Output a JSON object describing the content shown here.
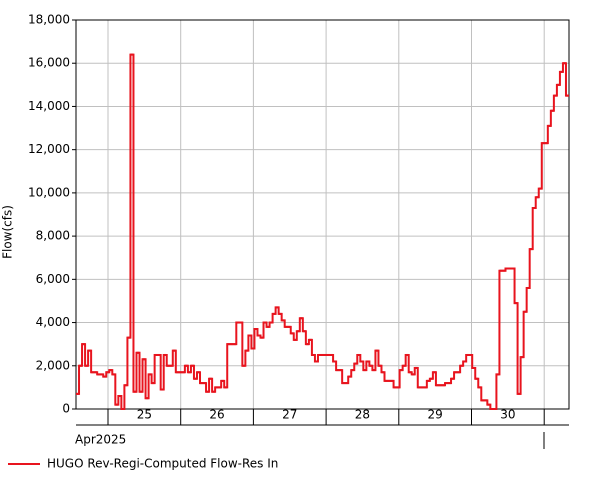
{
  "chart_data": {
    "type": "line",
    "step": true,
    "y_label": "Flow(cfs)",
    "x_labels": [
      "25",
      "26",
      "27",
      "28",
      "29",
      "30"
    ],
    "x_period": "Apr2025",
    "ylim": [
      0,
      18000
    ],
    "yticks": [
      0,
      {
        "value": 2000,
        "label": "2,000"
      },
      {
        "value": 4000,
        "label": "4,000"
      },
      {
        "value": 6000,
        "label": "6,000"
      },
      {
        "value": 8000,
        "label": "8,000"
      },
      {
        "value": 10000,
        "label": "10,000"
      },
      {
        "value": 12000,
        "label": "12,000"
      },
      {
        "value": 14000,
        "label": "14,000"
      },
      {
        "value": 16000,
        "label": "16,000"
      },
      {
        "value": 18000,
        "label": "18,000"
      }
    ],
    "grid": true,
    "series": [
      {
        "name": "HUGO Rev-Regi-Computed Flow-Res In",
        "color": "#e8141e",
        "values": [
          700,
          2000,
          3000,
          2000,
          2700,
          1700,
          1700,
          1600,
          1600,
          1500,
          1700,
          1800,
          1600,
          200,
          600,
          0,
          1100,
          3300,
          16400,
          800,
          2600,
          800,
          2300,
          500,
          1600,
          1200,
          2500,
          2500,
          900,
          2500,
          2000,
          2000,
          2700,
          1700,
          1700,
          1700,
          2000,
          1700,
          2000,
          1400,
          1700,
          1200,
          1200,
          800,
          1400,
          800,
          1000,
          1000,
          1300,
          1000,
          3000,
          3000,
          3000,
          4000,
          4000,
          2000,
          2700,
          3400,
          2800,
          3700,
          3400,
          3300,
          4000,
          3800,
          4000,
          4400,
          4700,
          4400,
          4100,
          3800,
          3800,
          3500,
          3200,
          3600,
          4200,
          3600,
          3000,
          3200,
          2500,
          2200,
          2500,
          2500,
          2500,
          2500,
          2500,
          2200,
          1800,
          1800,
          1200,
          1200,
          1500,
          1800,
          2100,
          2500,
          2200,
          1800,
          2200,
          2000,
          1800,
          2700,
          2000,
          1700,
          1300,
          1300,
          1300,
          1000,
          1000,
          1800,
          2000,
          2500,
          1700,
          1600,
          1900,
          1000,
          1000,
          1000,
          1300,
          1400,
          1700,
          1100,
          1100,
          1100,
          1200,
          1200,
          1400,
          1700,
          1700,
          2000,
          2200,
          2500,
          2500,
          1900,
          1400,
          1000,
          400,
          400,
          200,
          0,
          0,
          1600,
          6400,
          6400,
          6500,
          6500,
          6500,
          4900,
          700,
          2400,
          4500,
          5600,
          7400,
          9300,
          9800,
          10200,
          12300,
          12300,
          13100,
          13800,
          14500,
          15000,
          15600,
          16000,
          14500
        ]
      }
    ]
  }
}
